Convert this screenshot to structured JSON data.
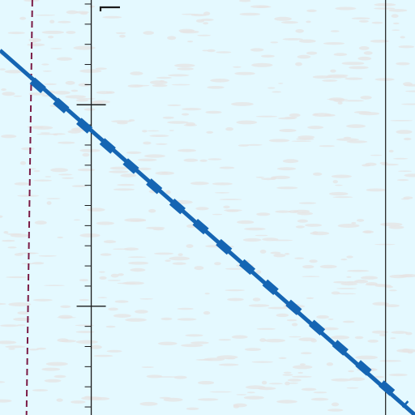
{
  "chart_data": {
    "type": "line",
    "title": "",
    "xlabel": "",
    "ylabel": "",
    "xlim": [
      -0.31,
      1.1
    ],
    "ylim": [
      -0.54,
      1.52
    ],
    "grid": false,
    "series": [
      {
        "name": "",
        "style": "solid",
        "color": "#1565b3",
        "x": [
          -0.31,
          1.1
        ],
        "y": [
          1.27,
          -0.54
        ]
      },
      {
        "name": "",
        "style": "dashed",
        "color": "#1565b3",
        "x": [
          -0.2,
          1.07
        ],
        "y": [
          1.12,
          -0.49
        ]
      }
    ],
    "vertical_lines": [
      {
        "name": "",
        "style": "dashed",
        "color": "#7a1a45",
        "x": [
          -0.2,
          -0.22
        ]
      },
      {
        "name": "",
        "style": "solid",
        "color": "#1a1a1a",
        "x": [
          1.0,
          1.0
        ]
      }
    ],
    "y_axis": {
      "at_x": 0,
      "major_ticks": [
        0,
        1
      ],
      "minor_tick_step": 0.1
    }
  },
  "colors": {
    "background": "#e4f9ff",
    "texture": "#e6e3e3",
    "axis": "#1a1a1a"
  }
}
